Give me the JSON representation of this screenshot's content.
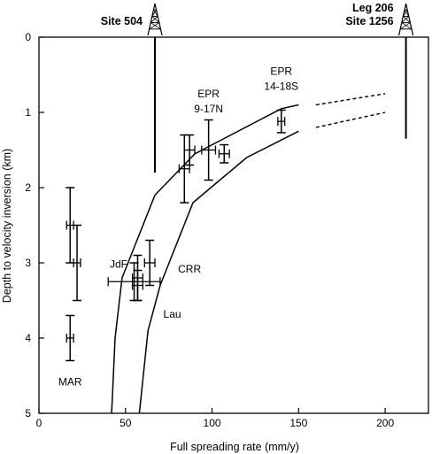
{
  "chart_data": {
    "type": "scatter",
    "xlabel": "Full spreading rate (mm/y)",
    "ylabel": "Depth to velocity inversion (km)",
    "xlim": [
      0,
      225
    ],
    "ylim": [
      0,
      5
    ],
    "y_inverted": true,
    "x_ticks": [
      "0",
      "50",
      "100",
      "150",
      "200"
    ],
    "y_ticks": [
      "0",
      "1",
      "2",
      "3",
      "4",
      "5"
    ],
    "grid": false,
    "points": [
      {
        "x": 18,
        "y": 2.5,
        "xerr": 2,
        "yerr": 0.5
      },
      {
        "x": 22,
        "y": 3.0,
        "xerr": 2,
        "yerr": 0.5
      },
      {
        "x": 18,
        "y": 4.0,
        "xerr": 2,
        "yerr": 0.3
      },
      {
        "x": 57,
        "y": 3.2,
        "xerr": 3,
        "yerr": 0.3
      },
      {
        "x": 64,
        "y": 3.0,
        "xerr": 3,
        "yerr": 0.3
      },
      {
        "x": 57,
        "y": 3.3,
        "xerr": 3,
        "yerr": 0.2
      },
      {
        "x": 55,
        "y": 3.25,
        "xerr": 15,
        "yerr": 0.25
      },
      {
        "x": 84,
        "y": 1.75,
        "xerr": 3,
        "yerr": 0.45
      },
      {
        "x": 87,
        "y": 1.5,
        "xerr": 3,
        "yerr": 0.2
      },
      {
        "x": 98,
        "y": 1.5,
        "xerr": 4,
        "yerr": 0.4
      },
      {
        "x": 107,
        "y": 1.55,
        "xerr": 3,
        "yerr": 0.12
      },
      {
        "x": 140,
        "y": 1.12,
        "xerr": 2,
        "yerr": 0.15
      }
    ],
    "curves": [
      {
        "points": [
          [
            42,
            5
          ],
          [
            44,
            4
          ],
          [
            48,
            3.2
          ],
          [
            67,
            2.1
          ],
          [
            90,
            1.55
          ],
          [
            140,
            0.95
          ],
          [
            150,
            0.9
          ]
        ]
      },
      {
        "points": [
          [
            58,
            5
          ],
          [
            63,
            3.9
          ],
          [
            70,
            3.3
          ],
          [
            89,
            2.2
          ],
          [
            120,
            1.6
          ],
          [
            150,
            1.25
          ]
        ]
      }
    ],
    "dashed": [
      {
        "points": [
          [
            160,
            0.9
          ],
          [
            200,
            0.75
          ]
        ]
      },
      {
        "points": [
          [
            160,
            1.2
          ],
          [
            200,
            1.0
          ]
        ]
      }
    ],
    "region_labels": [
      {
        "text": "EPR",
        "x": 140,
        "y": 0.45
      },
      {
        "text": "14-18S",
        "x": 140,
        "y": 0.65
      },
      {
        "text": "EPR",
        "x": 98,
        "y": 0.75
      },
      {
        "text": "9-17N",
        "x": 98,
        "y": 0.95
      },
      {
        "text": "JdF",
        "x": 46,
        "y": 3.02
      },
      {
        "text": "CRR",
        "x": 87,
        "y": 3.08
      },
      {
        "text": "Lau",
        "x": 77,
        "y": 3.68
      },
      {
        "text": "MAR",
        "x": 18,
        "y": 4.58
      }
    ],
    "sites": [
      {
        "name": "Site 504",
        "x": 67,
        "inversion_depth": 1.8
      },
      {
        "name_lines": [
          "Leg 206",
          "Site 1256"
        ],
        "x": 212,
        "inversion_depth": 1.35
      }
    ]
  }
}
